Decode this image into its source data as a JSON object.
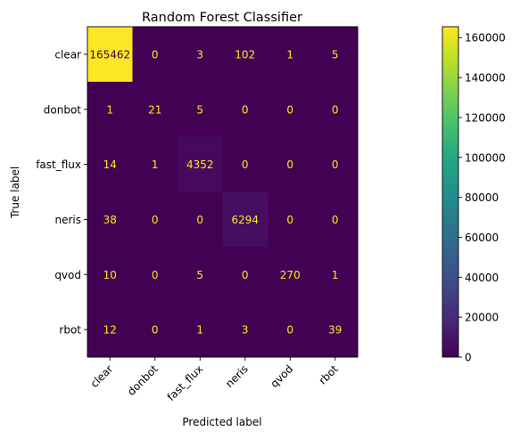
{
  "chart_data": {
    "type": "heatmap",
    "title": "Random Forest Classifier",
    "xlabel": "Predicted label",
    "ylabel": "True label",
    "x_categories": [
      "clear",
      "donbot",
      "fast_flux",
      "neris",
      "qvod",
      "rbot"
    ],
    "y_categories": [
      "clear",
      "donbot",
      "fast_flux",
      "neris",
      "qvod",
      "rbot"
    ],
    "values": [
      [
        165462,
        0,
        3,
        102,
        1,
        5
      ],
      [
        1,
        21,
        5,
        0,
        0,
        0
      ],
      [
        14,
        1,
        4352,
        0,
        0,
        0
      ],
      [
        38,
        0,
        0,
        6294,
        0,
        0
      ],
      [
        10,
        0,
        5,
        0,
        270,
        1
      ],
      [
        12,
        0,
        1,
        3,
        0,
        39
      ]
    ],
    "colormap": "viridis",
    "colorbar": {
      "range": [
        0,
        165462
      ],
      "ticks": [
        0,
        20000,
        40000,
        60000,
        80000,
        100000,
        120000,
        140000,
        160000
      ]
    },
    "text_color_on_dark": "#fde725",
    "text_color_on_light": "#440154",
    "x_tick_rotation": 45
  }
}
